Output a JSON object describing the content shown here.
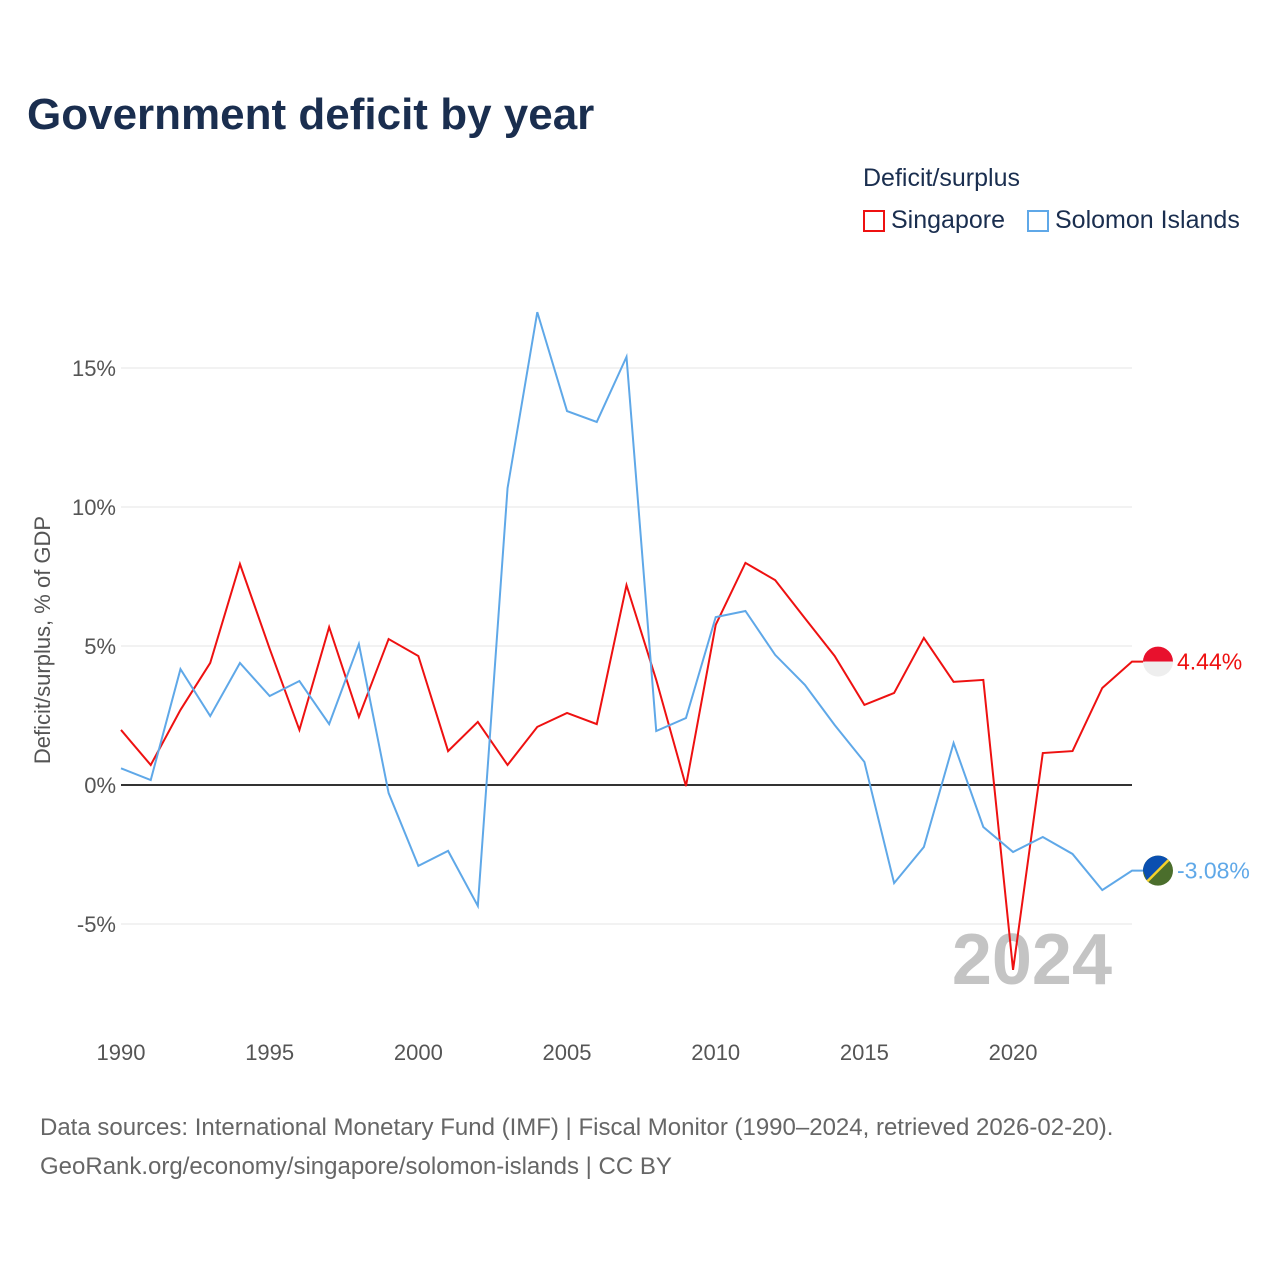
{
  "chart_data": {
    "type": "line",
    "title": "Government deficit by year",
    "ylabel": "Deficit/surplus, % of GDP",
    "xlabel": "",
    "ylim": [
      -8,
      18
    ],
    "xlim": [
      1990,
      2024
    ],
    "yticks": [
      -5,
      0,
      5,
      10,
      15
    ],
    "ytick_labels": [
      "-5%",
      "0%",
      "5%",
      "10%",
      "15%"
    ],
    "xticks": [
      1990,
      1995,
      2000,
      2005,
      2010,
      2015,
      2020
    ],
    "xtick_labels": [
      "1990",
      "1995",
      "2000",
      "2005",
      "2010",
      "2015",
      "2020"
    ],
    "grid": true,
    "legend_title": "Deficit/surplus",
    "legend_placement": "top-right",
    "year_watermark": "2024",
    "x": [
      1990,
      1991,
      1992,
      1993,
      1994,
      1995,
      1996,
      1997,
      1998,
      1999,
      2000,
      2001,
      2002,
      2003,
      2004,
      2005,
      2006,
      2007,
      2008,
      2009,
      2010,
      2011,
      2012,
      2013,
      2014,
      2015,
      2016,
      2017,
      2018,
      2019,
      2020,
      2021,
      2022,
      2023,
      2024
    ],
    "series": [
      {
        "name": "Singapore",
        "color": "#ee1111",
        "end_label": "4.44%",
        "values": [
          1.98,
          0.72,
          2.7,
          4.39,
          7.95,
          4.9,
          1.98,
          5.68,
          2.45,
          5.25,
          4.64,
          1.22,
          2.27,
          0.72,
          2.09,
          2.59,
          2.19,
          7.19,
          3.78,
          -0.04,
          5.76,
          7.99,
          7.37,
          6.0,
          4.64,
          2.88,
          3.31,
          5.29,
          3.71,
          3.78,
          -6.65,
          1.15,
          1.22,
          3.49,
          4.44
        ]
      },
      {
        "name": "Solomon Islands",
        "color": "#5fa8e8",
        "end_label": "-3.08%",
        "values": [
          0.6,
          0.18,
          4.17,
          2.48,
          4.39,
          3.2,
          3.74,
          2.19,
          5.07,
          -0.29,
          -2.91,
          -2.37,
          -4.35,
          10.68,
          17.01,
          13.45,
          13.06,
          15.4,
          1.94,
          2.41,
          6.04,
          6.26,
          4.68,
          3.6,
          2.16,
          0.83,
          -3.53,
          -2.23,
          1.51,
          -1.51,
          -2.41,
          -1.87,
          -2.48,
          -3.78,
          -3.08
        ]
      }
    ]
  },
  "sources": {
    "line1": "Data sources: International Monetary Fund (IMF) | Fiscal Monitor (1990–2024, retrieved 2026-02-20).",
    "line2": "GeoRank.org/economy/singapore/solomon-islands | CC BY"
  }
}
